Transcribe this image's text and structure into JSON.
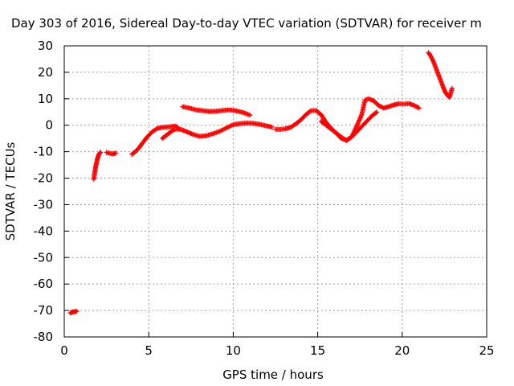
{
  "chart_data": {
    "type": "scatter",
    "title": "Day 303 of 2016, Sidereal Day-to-day VTEC variation (SDTVAR) for receiver m",
    "xlabel": "GPS time / hours",
    "ylabel": "SDTVAR / TECUs",
    "xlim": [
      0,
      25
    ],
    "ylim": [
      -80,
      30
    ],
    "xticks": [
      "0",
      "5",
      "10",
      "15",
      "20",
      "25"
    ],
    "yticks": [
      "30",
      "20",
      "10",
      "0",
      "-10",
      "-20",
      "-30",
      "-40",
      "-50",
      "-60",
      "-70",
      "-80"
    ],
    "grid": true,
    "marker": "+",
    "color": "#ff0000",
    "series": [
      {
        "segments": [
          {
            "x": [
              0.35,
              0.45,
              0.55,
              0.65,
              0.75
            ],
            "y": [
              -71,
              -70.6,
              -70.5,
              -70.4,
              -70.3
            ]
          },
          {
            "x": [
              1.75,
              1.8,
              1.85,
              1.9,
              1.95,
              2.0,
              2.05,
              2.1,
              2.15
            ],
            "y": [
              -20.5,
              -18,
              -16,
              -14.5,
              -13,
              -12,
              -11,
              -10.5,
              -10.2
            ]
          },
          {
            "x": [
              2.5,
              2.7,
              2.9,
              3.05
            ],
            "y": [
              -10.3,
              -10.6,
              -10.9,
              -10.5
            ]
          },
          {
            "x": [
              4.0,
              4.3,
              4.6,
              4.9,
              5.2,
              5.5,
              5.8,
              6.2,
              6.6,
              6.8
            ],
            "y": [
              -11,
              -9.5,
              -7,
              -4.5,
              -2.5,
              -1.2,
              -0.8,
              -0.6,
              -0.3,
              -1.5
            ]
          },
          {
            "x": [
              5.8,
              6.0,
              6.2,
              6.4,
              6.6,
              6.8,
              7.0,
              7.3,
              7.6,
              8.0,
              8.4,
              8.8,
              9.2,
              9.6,
              10.0,
              10.4,
              10.8,
              11.2,
              11.6,
              12.0,
              12.3
            ],
            "y": [
              -5,
              -4,
              -3,
              -2,
              -1.5,
              -1.4,
              -1.8,
              -2.6,
              -3.4,
              -4.2,
              -4.0,
              -3.2,
              -2.3,
              -1.0,
              0.2,
              0.6,
              0.8,
              0.7,
              0.3,
              -0.3,
              -0.7
            ]
          },
          {
            "x": [
              7.0,
              7.4,
              7.8,
              8.2,
              8.6,
              9.0,
              9.4,
              9.8,
              10.2,
              10.6,
              11.0
            ],
            "y": [
              7.0,
              6.5,
              5.8,
              5.5,
              5.2,
              5.3,
              5.6,
              5.8,
              5.4,
              4.8,
              3.8
            ]
          },
          {
            "x": [
              12.5,
              12.8,
              13.1,
              13.4,
              13.7,
              14.0,
              14.3,
              14.6,
              14.9,
              15.2,
              15.5,
              15.8,
              16.1,
              16.4,
              16.7,
              17.0,
              17.3,
              17.6,
              17.9,
              18.2,
              18.5
            ],
            "y": [
              -1.5,
              -1.6,
              -1.3,
              -0.8,
              0.5,
              2.0,
              4.0,
              5.5,
              5.6,
              4.0,
              1.0,
              -1.2,
              -3.0,
              -5.0,
              -5.6,
              -4.5,
              -2.5,
              -0.5,
              1.5,
              3.5,
              5.0
            ]
          },
          {
            "x": [
              15.2,
              15.5,
              15.8,
              16.1,
              16.4,
              16.7,
              17.0,
              17.3,
              17.6,
              17.8,
              18.0,
              18.3,
              18.6,
              18.9,
              19.2,
              19.5,
              19.8,
              20.1,
              20.4,
              20.7,
              21.0
            ],
            "y": [
              1.5,
              0.0,
              -1.5,
              -3.0,
              -4.5,
              -5.8,
              -4.5,
              -0.5,
              4.0,
              9.5,
              10.0,
              9.3,
              7.5,
              6.5,
              7.0,
              7.7,
              8.1,
              8.0,
              8.2,
              7.5,
              6.5
            ]
          },
          {
            "x": [
              21.55,
              21.7,
              21.85,
              22.0,
              22.15,
              22.3,
              22.45,
              22.55,
              22.65,
              22.8,
              22.95
            ],
            "y": [
              27.5,
              26,
              24,
              21.5,
              19,
              16.5,
              14,
              12.5,
              11.5,
              10.5,
              14
            ]
          }
        ]
      }
    ]
  }
}
